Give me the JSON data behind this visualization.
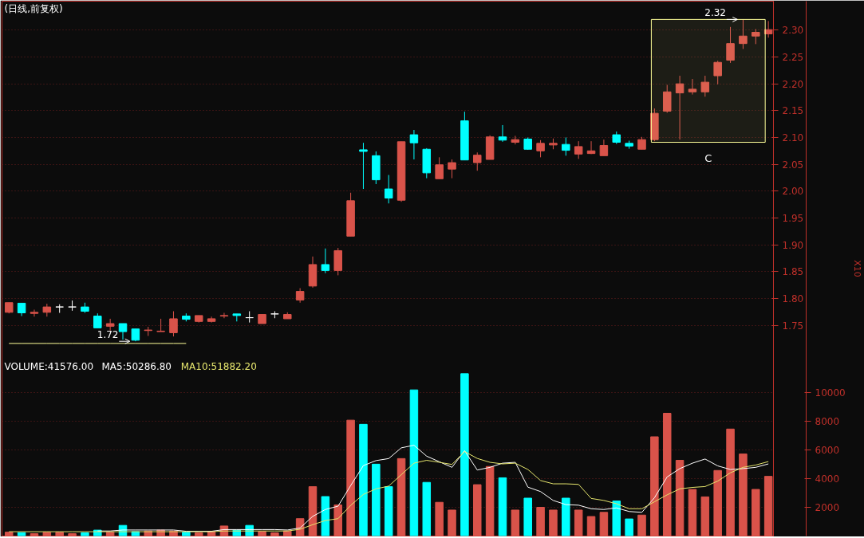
{
  "chart_data": {
    "type": "candlestick",
    "title": "(日线,前复权)",
    "categories": [
      null,
      null,
      null,
      null,
      null,
      null,
      null,
      null,
      null,
      null,
      null,
      null,
      null,
      null,
      null,
      null,
      null,
      null,
      null,
      null,
      null,
      null,
      null,
      null,
      null,
      null,
      null,
      null,
      null,
      null,
      null,
      null,
      null,
      null,
      null,
      null,
      null,
      null,
      null,
      null,
      null,
      null,
      null,
      null,
      null,
      null,
      null,
      null,
      null,
      null,
      null,
      null,
      null,
      null,
      null,
      null,
      null,
      null,
      null,
      null,
      null
    ],
    "ohlc": [
      [
        1.774,
        1.792,
        1.772,
        1.792
      ],
      [
        1.791,
        1.791,
        1.767,
        1.773
      ],
      [
        1.772,
        1.779,
        1.766,
        1.774
      ],
      [
        1.774,
        1.79,
        1.766,
        1.784
      ],
      [
        1.784,
        1.789,
        1.773,
        1.784
      ],
      [
        1.784,
        1.796,
        1.777,
        1.784
      ],
      [
        1.784,
        1.792,
        1.773,
        1.776
      ],
      [
        1.767,
        1.772,
        1.745,
        1.745
      ],
      [
        1.748,
        1.762,
        1.74,
        1.753
      ],
      [
        1.753,
        1.753,
        1.723,
        1.738
      ],
      [
        1.743,
        1.743,
        1.72,
        1.722
      ],
      [
        1.74,
        1.747,
        1.73,
        1.741
      ],
      [
        1.738,
        1.762,
        1.738,
        1.739
      ],
      [
        1.736,
        1.776,
        1.729,
        1.762
      ],
      [
        1.767,
        1.772,
        1.757,
        1.761
      ],
      [
        1.757,
        1.768,
        1.755,
        1.768
      ],
      [
        1.757,
        1.766,
        1.755,
        1.762
      ],
      [
        1.767,
        1.773,
        1.763,
        1.768
      ],
      [
        1.771,
        1.771,
        1.757,
        1.768
      ],
      [
        1.764,
        1.776,
        1.755,
        1.764
      ],
      [
        1.753,
        1.77,
        1.753,
        1.77
      ],
      [
        1.771,
        1.776,
        1.763,
        1.771
      ],
      [
        1.762,
        1.774,
        1.762,
        1.77
      ],
      [
        1.797,
        1.819,
        1.792,
        1.813
      ],
      [
        1.823,
        1.878,
        1.82,
        1.863
      ],
      [
        1.863,
        1.893,
        1.847,
        1.852
      ],
      [
        1.852,
        1.894,
        1.843,
        1.889
      ],
      [
        1.916,
        1.997,
        1.916,
        1.982
      ],
      [
        2.077,
        2.09,
        2.004,
        2.074
      ],
      [
        2.066,
        2.074,
        2.013,
        2.021
      ],
      [
        2.004,
        2.03,
        1.977,
        1.987
      ],
      [
        1.983,
        2.092,
        1.98,
        2.092
      ],
      [
        2.105,
        2.114,
        2.059,
        2.09
      ],
      [
        2.078,
        2.08,
        2.024,
        2.034
      ],
      [
        2.023,
        2.063,
        2.023,
        2.049
      ],
      [
        2.041,
        2.059,
        2.024,
        2.053
      ],
      [
        2.131,
        2.148,
        2.058,
        2.058
      ],
      [
        2.053,
        2.072,
        2.038,
        2.067
      ],
      [
        2.059,
        2.104,
        2.059,
        2.101
      ],
      [
        2.101,
        2.123,
        2.092,
        2.095
      ],
      [
        2.091,
        2.103,
        2.087,
        2.096
      ],
      [
        2.097,
        2.1,
        2.077,
        2.078
      ],
      [
        2.075,
        2.095,
        2.063,
        2.089
      ],
      [
        2.086,
        2.098,
        2.078,
        2.089
      ],
      [
        2.087,
        2.1,
        2.066,
        2.076
      ],
      [
        2.069,
        2.093,
        2.06,
        2.083
      ],
      [
        2.07,
        2.093,
        2.069,
        2.075
      ],
      [
        2.066,
        2.096,
        2.066,
        2.085
      ],
      [
        2.105,
        2.111,
        2.088,
        2.091
      ],
      [
        2.089,
        2.094,
        2.079,
        2.084
      ],
      [
        2.078,
        2.101,
        2.078,
        2.096
      ],
      [
        2.096,
        2.154,
        2.093,
        2.145
      ],
      [
        2.149,
        2.198,
        2.146,
        2.185
      ],
      [
        2.183,
        2.215,
        2.096,
        2.2
      ],
      [
        2.185,
        2.209,
        2.18,
        2.19
      ],
      [
        2.185,
        2.215,
        2.176,
        2.203
      ],
      [
        2.215,
        2.243,
        2.199,
        2.24
      ],
      [
        2.244,
        2.306,
        2.239,
        2.275
      ],
      [
        2.275,
        2.32,
        2.265,
        2.289
      ],
      [
        2.289,
        2.302,
        2.274,
        2.296
      ],
      [
        2.293,
        2.317,
        2.286,
        2.301
      ]
    ],
    "colors": [
      "#d9534a",
      "#00ffff",
      "#d9534a",
      "#d9534a",
      "#ffffff",
      "#ffffff",
      "#00ffff",
      "#00ffff",
      "#d9534a",
      "#00ffff",
      "#00ffff",
      "#d9534a",
      "#d9534a",
      "#d9534a",
      "#00ffff",
      "#d9534a",
      "#d9534a",
      "#d9534a",
      "#00ffff",
      "#ffffff",
      "#d9534a",
      "#ffffff",
      "#d9534a",
      "#d9534a",
      "#d9534a",
      "#00ffff",
      "#d9534a",
      "#d9534a",
      "#00ffff",
      "#00ffff",
      "#00ffff",
      "#d9534a",
      "#00ffff",
      "#00ffff",
      "#d9534a",
      "#d9534a",
      "#00ffff",
      "#d9534a",
      "#d9534a",
      "#00ffff",
      "#d9534a",
      "#00ffff",
      "#d9534a",
      "#d9534a",
      "#00ffff",
      "#d9534a",
      "#d9534a",
      "#d9534a",
      "#00ffff",
      "#00ffff",
      "#d9534a",
      "#d9534a",
      "#d9534a",
      "#d9534a",
      "#d9534a",
      "#d9534a",
      "#d9534a",
      "#d9534a",
      "#d9534a",
      "#d9534a",
      "#d9534a"
    ],
    "series": [
      {
        "type": "line",
        "color": "#ffff99",
        "values": [
          1.716,
          1.716,
          1.716,
          1.716,
          1.716,
          1.716,
          1.716,
          1.716,
          1.716,
          1.716,
          1.716,
          1.716,
          1.716,
          1.716,
          1.716,
          null,
          null,
          null,
          null,
          null,
          null,
          null,
          null,
          null,
          null,
          null,
          null,
          null,
          null,
          null,
          null,
          null,
          null,
          null,
          null,
          null,
          null,
          null,
          null,
          null,
          null,
          null,
          null,
          null,
          null,
          null,
          null,
          null,
          null,
          null,
          null,
          null,
          null,
          null,
          null,
          null,
          null,
          null,
          null,
          null,
          null
        ]
      },
      {
        "type": "bar",
        "axis": "y2",
        "colors": [
          "#d9534a",
          "#00ffff",
          "#d9534a",
          "#d9534a",
          "#d9534a",
          "#d9534a",
          "#00ffff",
          "#00ffff",
          "#d9534a",
          "#00ffff",
          "#00ffff",
          "#d9534a",
          "#d9534a",
          "#d9534a",
          "#00ffff",
          "#d9534a",
          "#d9534a",
          "#d9534a",
          "#00ffff",
          "#00ffff",
          "#d9534a",
          "#d9534a",
          "#d9534a",
          "#d9534a",
          "#d9534a",
          "#00ffff",
          "#d9534a",
          "#d9534a",
          "#00ffff",
          "#00ffff",
          "#00ffff",
          "#d9534a",
          "#00ffff",
          "#00ffff",
          "#d9534a",
          "#d9534a",
          "#00ffff",
          "#d9534a",
          "#d9534a",
          "#00ffff",
          "#d9534a",
          "#00ffff",
          "#d9534a",
          "#d9534a",
          "#00ffff",
          "#d9534a",
          "#d9534a",
          "#d9534a",
          "#00ffff",
          "#00ffff",
          "#d9534a",
          "#d9534a",
          "#d9534a",
          "#d9534a",
          "#d9534a",
          "#d9534a",
          "#d9534a",
          "#d9534a",
          "#d9534a",
          "#d9534a",
          "#d9534a"
        ],
        "values": [
          270,
          240,
          160,
          260,
          260,
          160,
          220,
          410,
          260,
          740,
          310,
          350,
          410,
          350,
          270,
          220,
          310,
          700,
          410,
          740,
          310,
          220,
          350,
          1210,
          3440,
          2750,
          2170,
          8080,
          7790,
          5010,
          3440,
          5400,
          10190,
          3740,
          2350,
          1810,
          11320,
          3580,
          4850,
          4060,
          1810,
          2640,
          2000,
          1810,
          2640,
          1810,
          1360,
          1650,
          2440,
          1190,
          1460,
          6920,
          8560,
          5280,
          3250,
          2730,
          4570,
          7460,
          5720,
          3250,
          4160
        ]
      },
      {
        "type": "line",
        "axis": "y2",
        "name": "MA5:50286.80",
        "color": "#ffffff",
        "values": [
          null,
          null,
          null,
          null,
          null,
          null,
          null,
          350,
          350,
          420,
          420,
          420,
          420,
          420,
          330,
          330,
          330,
          450,
          450,
          450,
          450,
          450,
          420,
          560,
          1370,
          1850,
          2080,
          3520,
          4910,
          5260,
          5400,
          6150,
          6330,
          5570,
          5180,
          4790,
          5950,
          4600,
          4790,
          5080,
          5140,
          3410,
          3100,
          2480,
          2190,
          2150,
          1900,
          1850,
          1960,
          1710,
          1650,
          2670,
          4120,
          4700,
          5080,
          5370,
          4890,
          4640,
          4700,
          4790,
          5030
        ]
      },
      {
        "type": "line",
        "axis": "y2",
        "name": "MA10:51882.20",
        "color": "#e6e66e",
        "values": [
          300,
          300,
          300,
          300,
          300,
          300,
          300,
          300,
          300,
          300,
          300,
          300,
          300,
          300,
          300,
          300,
          300,
          350,
          350,
          350,
          350,
          350,
          350,
          470,
          790,
          1080,
          1210,
          2140,
          2900,
          3290,
          3480,
          4280,
          5080,
          5280,
          5140,
          4990,
          5890,
          5410,
          5140,
          5030,
          5080,
          4640,
          3870,
          3640,
          3640,
          3600,
          2620,
          2480,
          2250,
          1900,
          1900,
          2390,
          2870,
          3290,
          3390,
          3450,
          3830,
          4410,
          4790,
          4950,
          5190
        ]
      }
    ],
    "annotations": [
      {
        "text": "1.72",
        "y": 1.72
      },
      {
        "text": "2.32",
        "y": 2.32
      },
      "VOLUME:41576.00"
    ],
    "bands": [
      {
        "axis": "y",
        "from": 2.091,
        "to": 2.32,
        "label": "C",
        "color": "#ffff99"
      }
    ],
    "y2label": "X10",
    "ylim": [
      1.357,
      2.354
    ],
    "yticks": [
      {
        "value": 1.75,
        "label": "1.75"
      },
      {
        "value": 1.8,
        "label": "1.80"
      },
      {
        "value": 1.85,
        "label": "1.85"
      },
      {
        "value": 1.9,
        "label": "1.90"
      },
      {
        "value": 1.95,
        "label": "1.95"
      },
      {
        "value": 2.0,
        "label": "2.00"
      },
      {
        "value": 2.05,
        "label": "2.05"
      },
      {
        "value": 2.1,
        "label": "2.10"
      },
      {
        "value": 2.15,
        "label": "2.15"
      },
      {
        "value": 2.2,
        "label": "2.20"
      },
      {
        "value": 2.25,
        "label": "2.25"
      },
      {
        "value": 2.3,
        "label": "2.30"
      }
    ],
    "y2lim": [
      0,
      37300
    ],
    "y2ticks": [
      2000,
      4000,
      6000,
      8000,
      10000
    ],
    "grid": "y"
  }
}
